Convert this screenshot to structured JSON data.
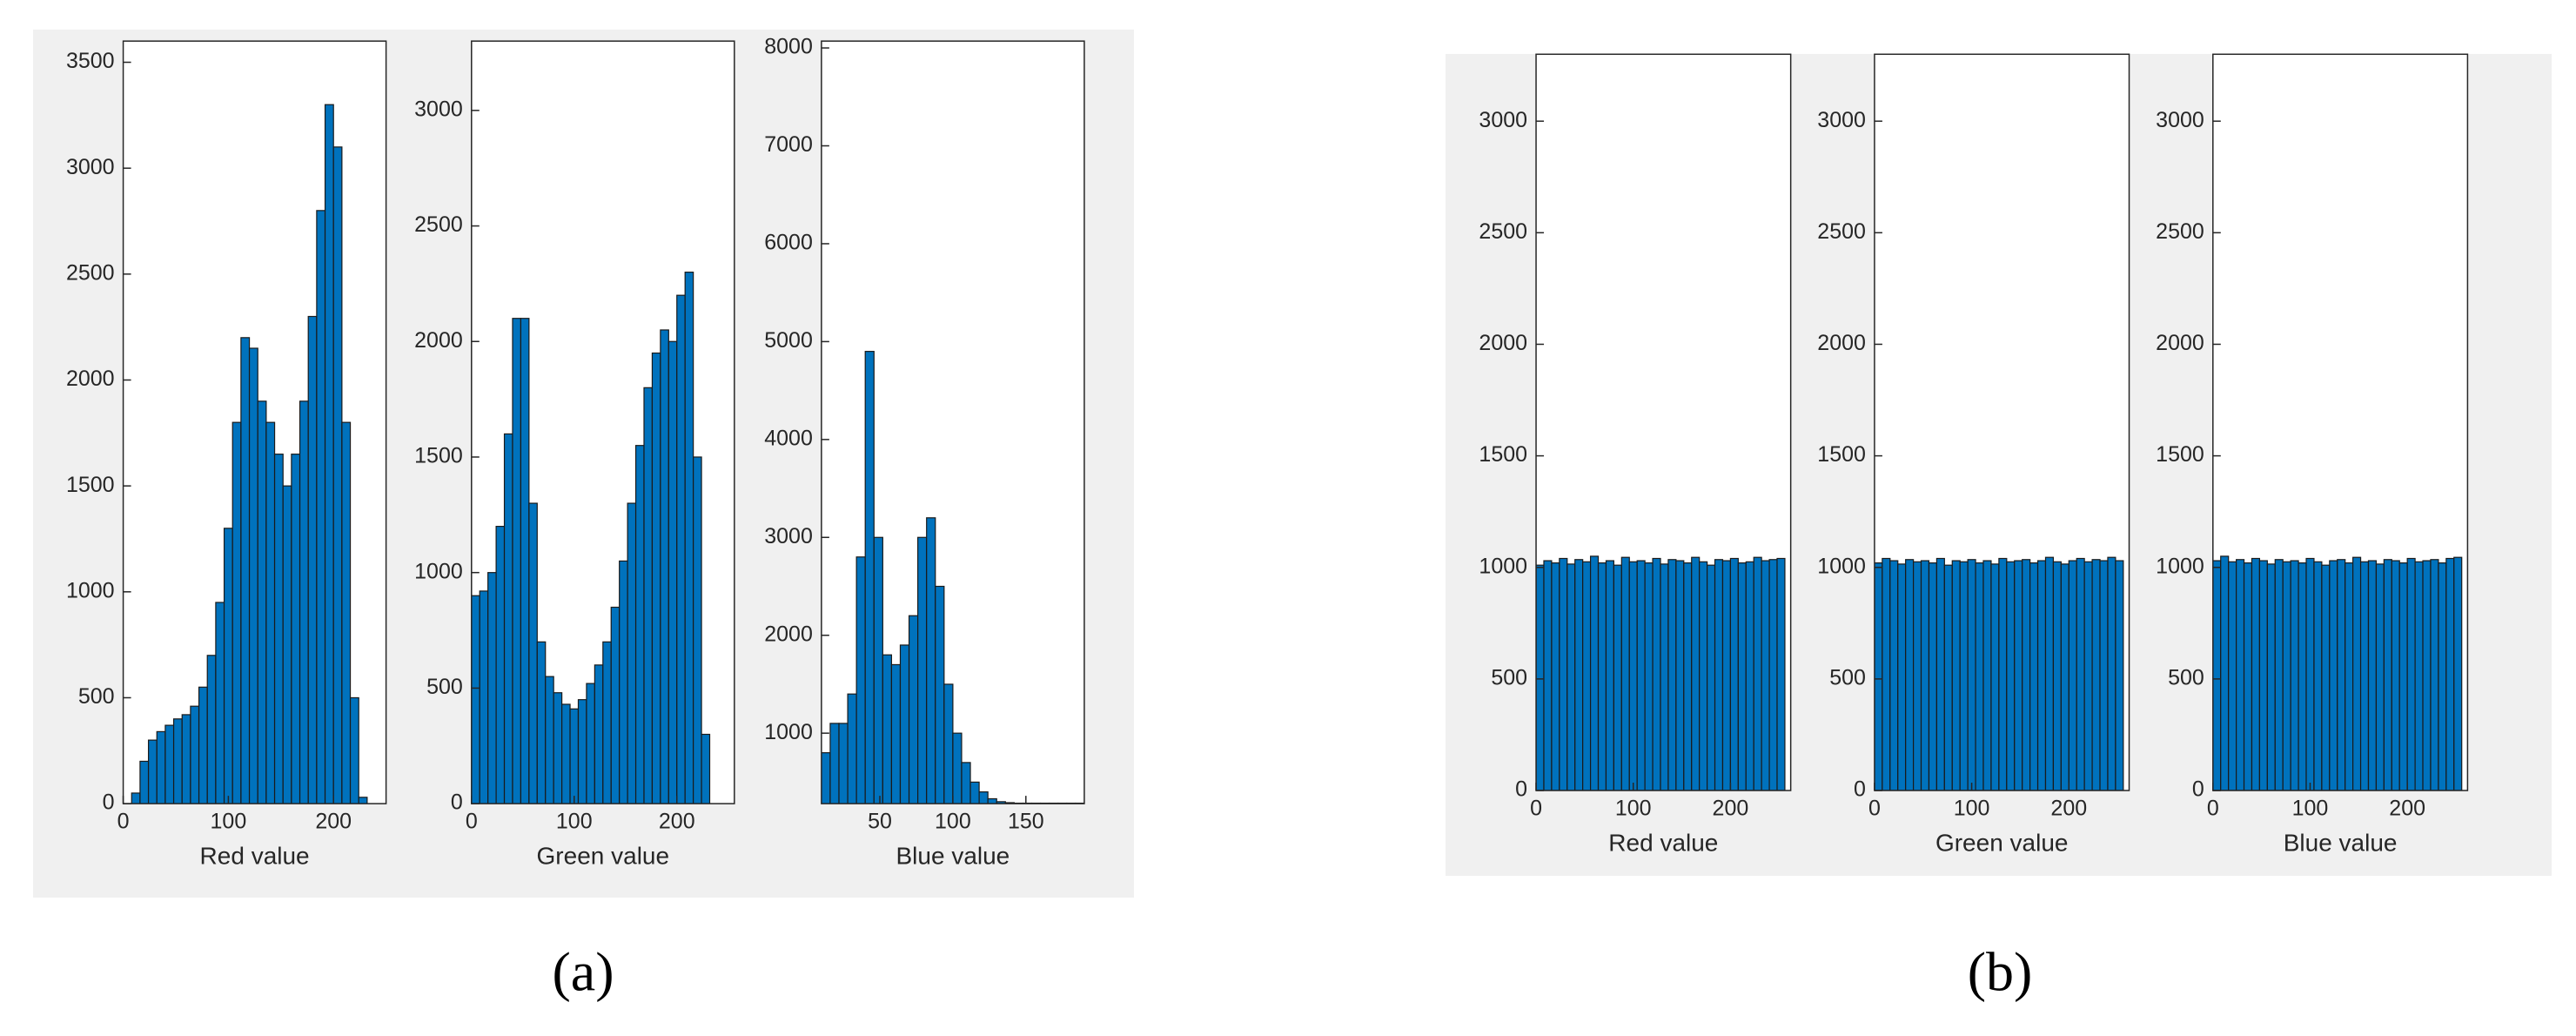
{
  "panel_labels": [
    "(a)",
    "(b)"
  ],
  "chart_data": [
    {
      "type": "histogram",
      "xlabel": "Red value",
      "color": "#0072bd",
      "bins": [
        0,
        8,
        16,
        24,
        32,
        40,
        48,
        56,
        64,
        72,
        80,
        88,
        96,
        104,
        112,
        120,
        128,
        136,
        144,
        152,
        160,
        168,
        176,
        184,
        192,
        200,
        208,
        216,
        224,
        232,
        240,
        248
      ],
      "values": [
        0,
        50,
        200,
        300,
        340,
        370,
        400,
        420,
        460,
        550,
        700,
        950,
        1300,
        1800,
        2200,
        2150,
        1900,
        1800,
        1650,
        1500,
        1650,
        1900,
        2300,
        2800,
        3300,
        3100,
        1800,
        500,
        30,
        0,
        0
      ],
      "xlim": [
        0,
        250
      ],
      "ylim": [
        0,
        3600
      ],
      "xticks": [
        0,
        100,
        200
      ],
      "yticks": [
        0,
        500,
        1000,
        1500,
        2000,
        2500,
        3000,
        3500
      ]
    },
    {
      "type": "histogram",
      "xlabel": "Green value",
      "color": "#0072bd",
      "bins": [
        0,
        8,
        16,
        24,
        32,
        40,
        48,
        56,
        64,
        72,
        80,
        88,
        96,
        104,
        112,
        120,
        128,
        136,
        144,
        152,
        160,
        168,
        176,
        184,
        192,
        200,
        208,
        216,
        224,
        232,
        240,
        248,
        256
      ],
      "values": [
        900,
        920,
        1000,
        1200,
        1600,
        2100,
        2100,
        1300,
        700,
        550,
        480,
        430,
        410,
        450,
        520,
        600,
        700,
        850,
        1050,
        1300,
        1550,
        1800,
        1950,
        2050,
        2000,
        2200,
        2300,
        1500,
        300,
        0,
        0,
        0
      ],
      "xlim": [
        0,
        256
      ],
      "ylim": [
        0,
        3300
      ],
      "xticks": [
        0,
        100,
        200
      ],
      "yticks": [
        0,
        500,
        1000,
        1500,
        2000,
        2500,
        3000
      ]
    },
    {
      "type": "histogram",
      "xlabel": "Blue value",
      "color": "#0072bd",
      "bins": [
        10,
        16,
        22,
        28,
        34,
        40,
        46,
        52,
        58,
        64,
        70,
        76,
        82,
        88,
        94,
        100,
        106,
        112,
        118,
        124,
        130,
        136,
        142,
        148,
        154,
        160,
        166,
        172,
        178,
        184,
        190
      ],
      "values": [
        800,
        1100,
        1100,
        1400,
        2800,
        4900,
        3000,
        1800,
        1700,
        1900,
        2200,
        3000,
        3200,
        2500,
        1500,
        1000,
        700,
        500,
        400,
        330,
        300,
        290,
        285,
        285,
        285,
        285,
        285,
        285,
        285,
        285
      ],
      "xlim": [
        10,
        190
      ],
      "ylim": [
        280,
        8070
      ],
      "xticks": [
        50,
        100,
        150
      ],
      "yticks": [
        1000,
        2000,
        3000,
        4000,
        5000,
        6000,
        7000,
        8000
      ]
    },
    {
      "type": "histogram",
      "xlabel": "Red value",
      "color": "#0072bd",
      "bins": [
        0,
        8,
        16,
        24,
        32,
        40,
        48,
        56,
        64,
        72,
        80,
        88,
        96,
        104,
        112,
        120,
        128,
        136,
        144,
        152,
        160,
        168,
        176,
        184,
        192,
        200,
        208,
        216,
        224,
        232,
        240,
        248,
        256
      ],
      "values": [
        1010,
        1030,
        1020,
        1040,
        1015,
        1035,
        1025,
        1050,
        1020,
        1030,
        1010,
        1045,
        1025,
        1030,
        1020,
        1040,
        1015,
        1035,
        1030,
        1020,
        1045,
        1025,
        1010,
        1035,
        1030,
        1040,
        1020,
        1025,
        1045,
        1030,
        1035,
        1040
      ],
      "xlim": [
        0,
        262
      ],
      "ylim": [
        0,
        3300
      ],
      "xticks": [
        0,
        100,
        200
      ],
      "yticks": [
        0,
        500,
        1000,
        1500,
        2000,
        2500,
        3000
      ]
    },
    {
      "type": "histogram",
      "xlabel": "Green value",
      "color": "#0072bd",
      "bins": [
        0,
        8,
        16,
        24,
        32,
        40,
        48,
        56,
        64,
        72,
        80,
        88,
        96,
        104,
        112,
        120,
        128,
        136,
        144,
        152,
        160,
        168,
        176,
        184,
        192,
        200,
        208,
        216,
        224,
        232,
        240,
        248,
        256
      ],
      "values": [
        1020,
        1040,
        1030,
        1015,
        1035,
        1025,
        1030,
        1020,
        1040,
        1010,
        1030,
        1025,
        1035,
        1020,
        1030,
        1015,
        1040,
        1025,
        1030,
        1035,
        1020,
        1030,
        1045,
        1025,
        1015,
        1030,
        1040,
        1025,
        1035,
        1030,
        1045,
        1030
      ],
      "xlim": [
        0,
        262
      ],
      "ylim": [
        0,
        3300
      ],
      "xticks": [
        0,
        100,
        200
      ],
      "yticks": [
        0,
        500,
        1000,
        1500,
        2000,
        2500,
        3000
      ]
    },
    {
      "type": "histogram",
      "xlabel": "Blue value",
      "color": "#0072bd",
      "bins": [
        0,
        8,
        16,
        24,
        32,
        40,
        48,
        56,
        64,
        72,
        80,
        88,
        96,
        104,
        112,
        120,
        128,
        136,
        144,
        152,
        160,
        168,
        176,
        184,
        192,
        200,
        208,
        216,
        224,
        232,
        240,
        248,
        256
      ],
      "values": [
        1030,
        1050,
        1025,
        1035,
        1020,
        1040,
        1030,
        1015,
        1035,
        1025,
        1030,
        1020,
        1040,
        1025,
        1010,
        1030,
        1035,
        1020,
        1045,
        1025,
        1030,
        1015,
        1035,
        1030,
        1020,
        1040,
        1025,
        1030,
        1035,
        1020,
        1040,
        1045
      ],
      "xlim": [
        0,
        262
      ],
      "ylim": [
        0,
        3300
      ],
      "xticks": [
        0,
        100,
        200
      ],
      "yticks": [
        0,
        500,
        1000,
        1500,
        2000,
        2500,
        3000
      ]
    }
  ]
}
